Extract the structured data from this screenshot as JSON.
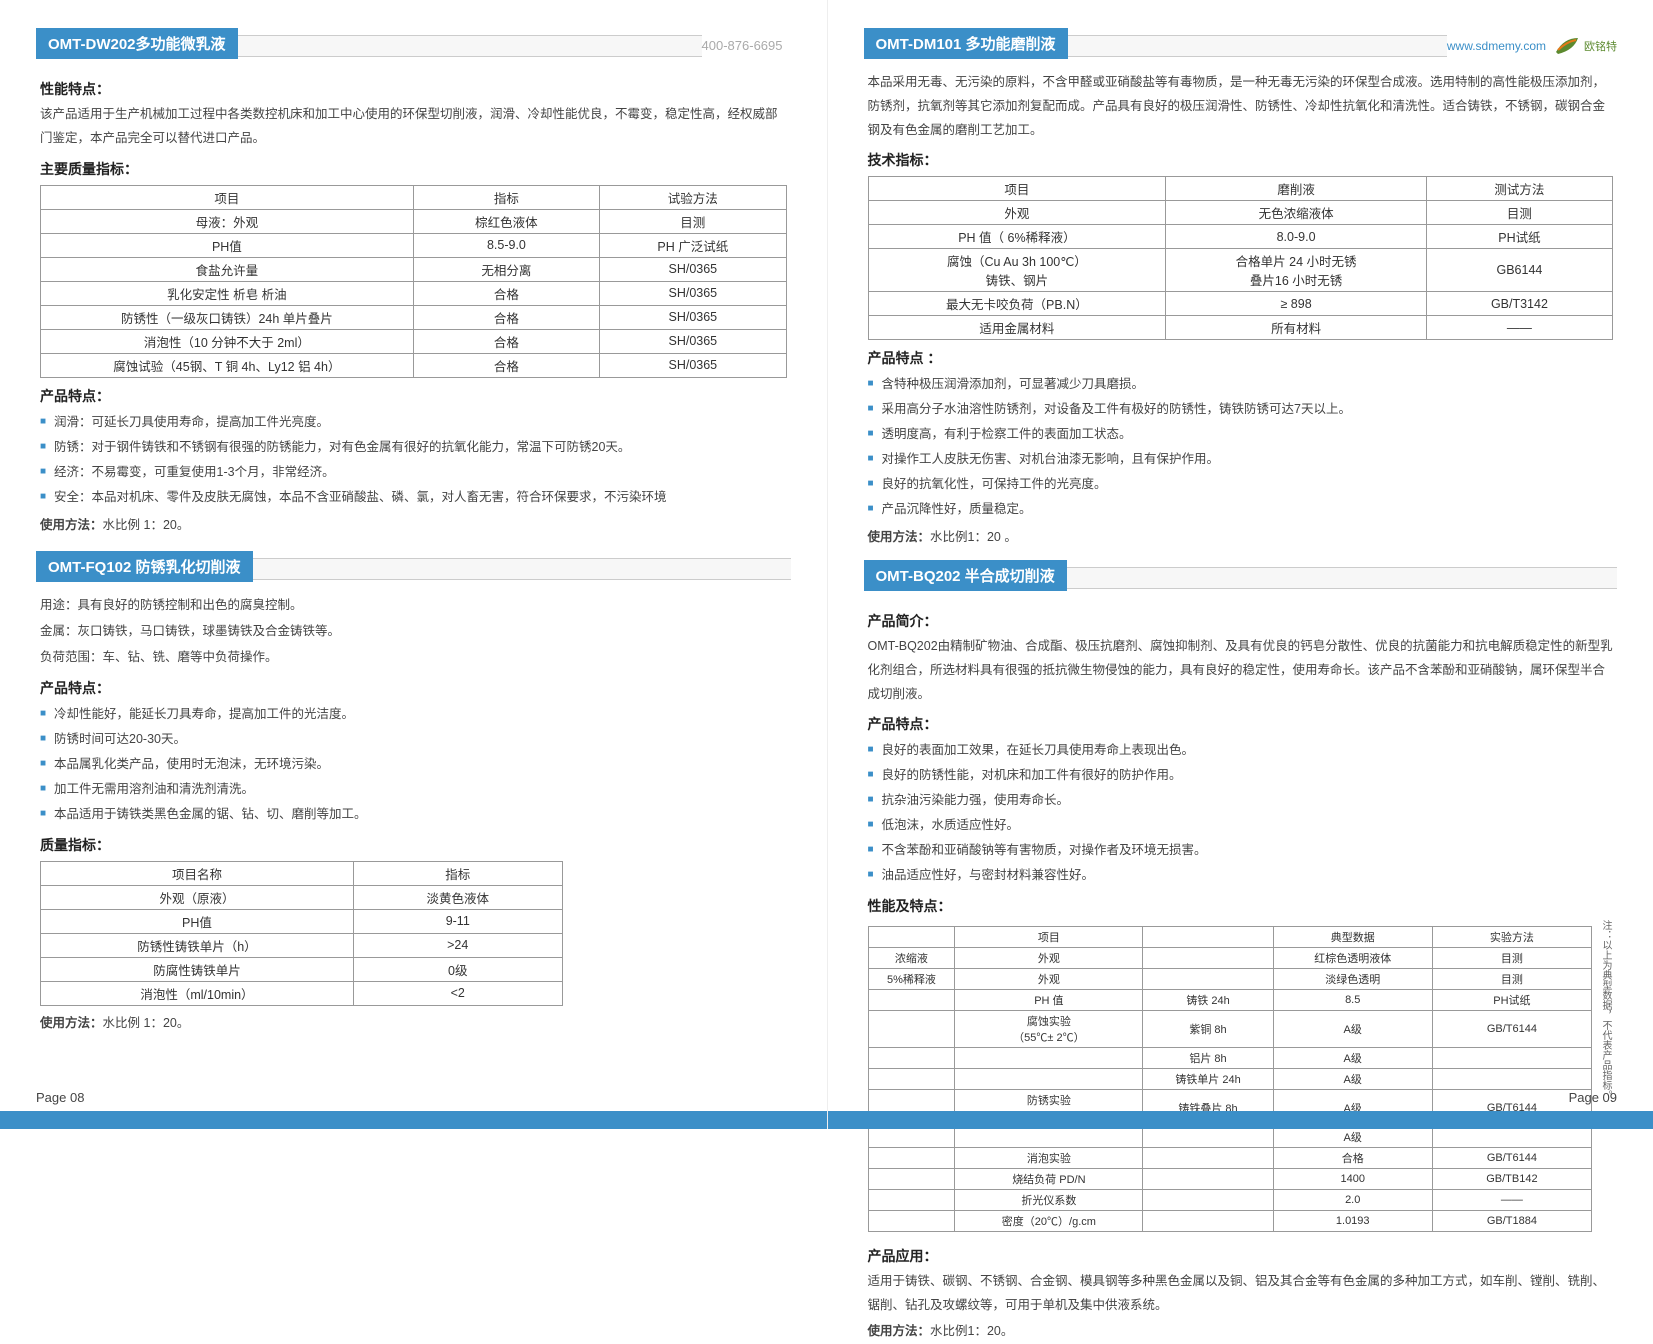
{
  "colors": {
    "primary": "#3b8fc8",
    "text": "#333",
    "lightText": "#aaa"
  },
  "contact": {
    "phone": "400-876-6695",
    "website": "www.sdmemy.com",
    "brand": "欧铭特"
  },
  "leftPage": {
    "pageLabel": "Page 08",
    "section1": {
      "title": "OMT-DW202多功能微乳液",
      "perf_h": "性能特点：",
      "perf_p": "该产品适用于生产机械加工过程中各类数控机床和加工中心使用的环保型切削液，润滑、冷却性能优良，不霉变，稳定性高，经权威部门鉴定，本产品完全可以替代进口产品。",
      "spec_h": "主要质量指标：",
      "table": {
        "headers": [
          "项目",
          "指标",
          "试验方法"
        ],
        "rows": [
          [
            "母液：外观",
            "棕红色液体",
            "目测"
          ],
          [
            "PH值",
            "8.5-9.0",
            "PH 广泛试纸"
          ],
          [
            "食盐允许量",
            "无相分离",
            "SH/0365"
          ],
          [
            "乳化安定性    析皂   析油",
            "合格",
            "SH/0365"
          ],
          [
            "防锈性（一级灰口铸铁）24h 单片叠片",
            "合格",
            "SH/0365"
          ],
          [
            "消泡性（10 分钟不大于 2ml）",
            "合格",
            "SH/0365"
          ],
          [
            "腐蚀试验（45钢、T 铜 4h、Ly12 铝 4h）",
            "合格",
            "SH/0365"
          ]
        ],
        "col_widths": [
          "50%",
          "25%",
          "25%"
        ]
      },
      "feat_h": "产品特点：",
      "features": [
        "润滑：可延长刀具使用寿命，提高加工件光亮度。",
        "防锈：对于钢件铸铁和不锈钢有很强的防锈能力，对有色金属有很好的抗氧化能力，常温下可防锈20天。",
        "经济：不易霉变，可重复使用1-3个月，非常经济。",
        "安全：本品对机床、零件及皮肤无腐蚀，本品不含亚硝酸盐、磷、氯，对人畜无害，符合环保要求，不污染环境"
      ],
      "usage_h": "使用方法：",
      "usage_p": "水比例 1：20。"
    },
    "section2": {
      "title": "OMT-FQ102 防锈乳化切削液",
      "intro": [
        "用途：具有良好的防锈控制和出色的腐臭控制。",
        "金属：灰口铸铁，马口铸铁，球墨铸铁及合金铸铁等。",
        "负荷范围：车、钻、铣、磨等中负荷操作。"
      ],
      "feat_h": "产品特点：",
      "features": [
        "冷却性能好，能延长刀具寿命，提高加工件的光洁度。",
        "防锈时间可达20-30天。",
        "本品属乳化类产品，使用时无泡沫，无环境污染。",
        "加工件无需用溶剂油和清洗剂清洗。",
        "本品适用于铸铁类黑色金属的锯、钻、切、磨削等加工。"
      ],
      "spec_h": "质量指标：",
      "table": {
        "headers": [
          "项目名称",
          "指标"
        ],
        "rows": [
          [
            "外观（原液）",
            "淡黄色液体"
          ],
          [
            "PH值",
            "9-11"
          ],
          [
            "防锈性铸铁单片（h）",
            ">24"
          ],
          [
            "防腐性铸铁单片",
            "0级"
          ],
          [
            "消泡性（ml/10min）",
            "<2"
          ]
        ],
        "col_widths": [
          "60%",
          "40%"
        ]
      },
      "usage_h": "使用方法：",
      "usage_p": "水比例 1：20。"
    }
  },
  "rightPage": {
    "pageLabel": "Page 09",
    "section1": {
      "title": "OMT-DM101 多功能磨削液",
      "intro": "本品采用无毒、无污染的原料，不含甲醛或亚硝酸盐等有毒物质，是一种无毒无污染的环保型合成液。选用特制的高性能极压添加剂，防锈剂，抗氧剂等其它添加剂复配而成。产品具有良好的极压润滑性、防锈性、冷却性抗氧化和清洗性。适合铸铁，不锈钢，碳钢合金钢及有色金属的磨削工艺加工。",
      "spec_h": "技术指标：",
      "table": {
        "headers": [
          "项目",
          "磨削液",
          "测试方法"
        ],
        "rows": [
          [
            "外观",
            "无色浓缩液体",
            "目测"
          ],
          [
            "PH 值（  6%稀释液）",
            "8.0-9.0",
            "PH试纸"
          ],
          [
            "腐蚀（Cu Au 3h  100℃）\n铸铁、钢片",
            "合格单片 24 小时无锈\n叠片16  小时无锈",
            "GB6144"
          ],
          [
            "最大无卡咬负荷（PB.N）",
            "≥ 898",
            "GB/T3142"
          ],
          [
            "适用金属材料",
            "所有材料",
            "——"
          ]
        ],
        "col_widths": [
          "40%",
          "35%",
          "25%"
        ]
      },
      "feat_h": "产品特点 ：",
      "features": [
        "含特种极压润滑添加剂，可显著减少刀具磨损。",
        "采用高分子水油溶性防锈剂，对设备及工件有极好的防锈性，铸铁防锈可达7天以上。",
        "透明度高，有利于检察工件的表面加工状态。",
        "对操作工人皮肤无伤害、对机台油漆无影响，且有保护作用。",
        "良好的抗氧化性，可保持工件的光亮度。",
        "产品沉降性好，质量稳定。"
      ],
      "usage_h": "使用方法：",
      "usage_p": "水比例1：20 。"
    },
    "section2": {
      "title": "OMT-BQ202 半合成切削液",
      "intro_h": "产品简介：",
      "intro": "OMT-BQ202由精制矿物油、合成酯、极压抗磨剂、腐蚀抑制剂、及具有优良的钙皂分散性、优良的抗菌能力和抗电解质稳定性的新型乳化剂组合，所选材料具有很强的抵抗微生物侵蚀的能力，具有良好的稳定性，使用寿命长。该产品不含苯酚和亚硝酸钠，属环保型半合成切削液。",
      "feat_h": "产品特点：",
      "features": [
        "良好的表面加工效果，在延长刀具使用寿命上表现出色。",
        "良好的防锈性能，对机床和加工件有很好的防护作用。",
        "抗杂油污染能力强，使用寿命长。",
        "低泡沫，水质适应性好。",
        "不含苯酚和亚硝酸钠等有害物质，对操作者及环境无损害。",
        "油品适应性好，与密封材料兼容性好。"
      ],
      "perf_h": "性能及特点：",
      "note": "注：以上为典型数据，不代表产品指标。",
      "table": {
        "col_widths": [
          "12%",
          "26%",
          "18%",
          "22%",
          "22%"
        ],
        "rows": [
          [
            "",
            "项目",
            "",
            "典型数据",
            "实验方法"
          ],
          [
            "浓缩液",
            "外观",
            "",
            "红棕色透明液体",
            "目测"
          ],
          [
            "5%稀释液",
            "外观",
            "",
            "淡绿色透明",
            "目测"
          ],
          [
            "",
            "PH 值",
            "铸铁 24h",
            "8.5",
            "PH试纸"
          ],
          [
            "",
            "腐蚀实验\n（55℃± 2℃）",
            "紫铜 8h",
            "A级",
            "GB/T6144"
          ],
          [
            "",
            "",
            "铝片 8h",
            "A级",
            ""
          ],
          [
            "",
            "",
            "铸铁单片 24h",
            "A级",
            ""
          ],
          [
            "",
            "防锈实验\n（35°C ±2°C）",
            "铸铁叠片 8h",
            "A级",
            "GB/T6144"
          ],
          [
            "",
            "",
            "",
            "A级",
            ""
          ],
          [
            "",
            "消泡实验",
            "",
            "合格",
            "GB/T6144"
          ],
          [
            "",
            "烧结负荷 PD/N",
            "",
            "1400",
            "GB/TB142"
          ],
          [
            "",
            "折光仪系数",
            "",
            "2.0",
            "——"
          ],
          [
            "",
            "密度（20℃）/g.cm",
            "",
            "1.0193",
            "GB/T1884"
          ]
        ]
      },
      "app_h": "产品应用：",
      "app_p": "适用于铸铁、碳钢、不锈钢、合金钢、模具钢等多种黑色金属以及铜、铝及其合金等有色金属的多种加工方式，如车削、镗削、铣削、锯削、钻孔及攻螺纹等，可用于单机及集中供液系统。",
      "usage_h": "使用方法：",
      "usage_p": "水比例1：20。"
    }
  }
}
